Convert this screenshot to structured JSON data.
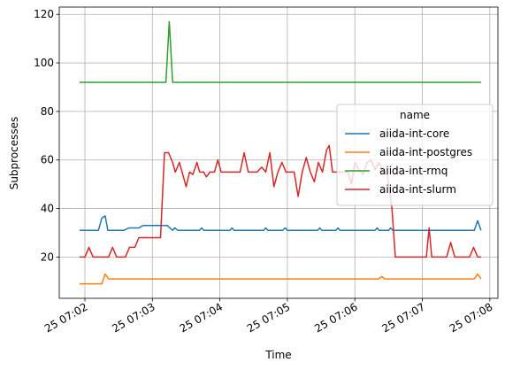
{
  "chart_data": {
    "type": "line",
    "xlabel": "Time",
    "ylabel": "Subprocesses",
    "xtick_labels": [
      "25 07:02",
      "25 07:03",
      "25 07:04",
      "25 07:05",
      "25 07:06",
      "25 07:07",
      "25 07:08"
    ],
    "xtick_minutes": [
      2,
      3,
      4,
      5,
      6,
      7,
      8
    ],
    "xlim_minutes": [
      1.62,
      8.12
    ],
    "ylim": [
      3,
      123
    ],
    "yticks": [
      20,
      40,
      60,
      80,
      100,
      120
    ],
    "grid": true,
    "legend": {
      "title": "name",
      "placement": "center-right"
    },
    "colors": {
      "aiida-int-core": "#1f77b4",
      "aiida-int-postgres": "#ff7f0e",
      "aiida-int-rmq": "#2ca02c",
      "aiida-int-slurm": "#d62728"
    },
    "series": [
      {
        "name": "aiida-int-core",
        "color": "#1f77b4",
        "points": [
          [
            1.92,
            31
          ],
          [
            2.2,
            31
          ],
          [
            2.25,
            36
          ],
          [
            2.3,
            37
          ],
          [
            2.34,
            31
          ],
          [
            2.58,
            31
          ],
          [
            2.65,
            32
          ],
          [
            2.8,
            32
          ],
          [
            2.86,
            33
          ],
          [
            3.22,
            33
          ],
          [
            3.3,
            31
          ],
          [
            3.33,
            32
          ],
          [
            3.38,
            31
          ],
          [
            3.7,
            31
          ],
          [
            3.73,
            32
          ],
          [
            3.76,
            31
          ],
          [
            4.15,
            31
          ],
          [
            4.18,
            32
          ],
          [
            4.21,
            31
          ],
          [
            4.65,
            31
          ],
          [
            4.68,
            32
          ],
          [
            4.71,
            31
          ],
          [
            4.93,
            31
          ],
          [
            4.97,
            32
          ],
          [
            5.0,
            31
          ],
          [
            5.45,
            31
          ],
          [
            5.48,
            32
          ],
          [
            5.51,
            31
          ],
          [
            5.72,
            31
          ],
          [
            5.75,
            32
          ],
          [
            5.78,
            31
          ],
          [
            6.3,
            31
          ],
          [
            6.33,
            32
          ],
          [
            6.36,
            31
          ],
          [
            6.5,
            31
          ],
          [
            6.53,
            32
          ],
          [
            6.56,
            31
          ],
          [
            7.77,
            31
          ],
          [
            7.82,
            35
          ],
          [
            7.87,
            31
          ]
        ]
      },
      {
        "name": "aiida-int-postgres",
        "color": "#ff7f0e",
        "points": [
          [
            1.92,
            9
          ],
          [
            2.25,
            9
          ],
          [
            2.3,
            13
          ],
          [
            2.35,
            11
          ],
          [
            6.35,
            11
          ],
          [
            6.4,
            12
          ],
          [
            6.44,
            11
          ],
          [
            7.77,
            11
          ],
          [
            7.82,
            13
          ],
          [
            7.87,
            11
          ]
        ]
      },
      {
        "name": "aiida-int-rmq",
        "color": "#2ca02c",
        "points": [
          [
            1.92,
            92
          ],
          [
            3.2,
            92
          ],
          [
            3.25,
            117
          ],
          [
            3.3,
            92
          ],
          [
            7.87,
            92
          ]
        ]
      },
      {
        "name": "aiida-int-slurm",
        "color": "#d62728",
        "points": [
          [
            1.92,
            20
          ],
          [
            2.0,
            20
          ],
          [
            2.06,
            24
          ],
          [
            2.12,
            20
          ],
          [
            2.35,
            20
          ],
          [
            2.41,
            24
          ],
          [
            2.47,
            20
          ],
          [
            2.6,
            20
          ],
          [
            2.66,
            24
          ],
          [
            2.74,
            24
          ],
          [
            2.8,
            28
          ],
          [
            3.12,
            28
          ],
          [
            3.18,
            63
          ],
          [
            3.24,
            63
          ],
          [
            3.3,
            59
          ],
          [
            3.34,
            55
          ],
          [
            3.4,
            59
          ],
          [
            3.44,
            55
          ],
          [
            3.5,
            49
          ],
          [
            3.55,
            55
          ],
          [
            3.6,
            54
          ],
          [
            3.66,
            59
          ],
          [
            3.7,
            55
          ],
          [
            3.76,
            55
          ],
          [
            3.8,
            53
          ],
          [
            3.85,
            55
          ],
          [
            3.92,
            55
          ],
          [
            3.97,
            60
          ],
          [
            4.02,
            55
          ],
          [
            4.08,
            55
          ],
          [
            4.3,
            55
          ],
          [
            4.36,
            63
          ],
          [
            4.42,
            55
          ],
          [
            4.55,
            55
          ],
          [
            4.62,
            57
          ],
          [
            4.68,
            55
          ],
          [
            4.74,
            63
          ],
          [
            4.8,
            49
          ],
          [
            4.86,
            55
          ],
          [
            4.92,
            59
          ],
          [
            4.98,
            55
          ],
          [
            5.1,
            55
          ],
          [
            5.16,
            45
          ],
          [
            5.22,
            55
          ],
          [
            5.28,
            61
          ],
          [
            5.34,
            55
          ],
          [
            5.4,
            51
          ],
          [
            5.46,
            59
          ],
          [
            5.52,
            55
          ],
          [
            5.58,
            64
          ],
          [
            5.62,
            66
          ],
          [
            5.67,
            55
          ],
          [
            5.9,
            55
          ],
          [
            5.95,
            50
          ],
          [
            6.0,
            59
          ],
          [
            6.06,
            56
          ],
          [
            6.12,
            54
          ],
          [
            6.18,
            59
          ],
          [
            6.24,
            60
          ],
          [
            6.3,
            56
          ],
          [
            6.36,
            59
          ],
          [
            6.42,
            55
          ],
          [
            6.48,
            54
          ],
          [
            6.55,
            40
          ],
          [
            6.6,
            20
          ],
          [
            7.06,
            20
          ],
          [
            7.1,
            32
          ],
          [
            7.14,
            20
          ],
          [
            7.36,
            20
          ],
          [
            7.42,
            26
          ],
          [
            7.48,
            20
          ],
          [
            7.7,
            20
          ],
          [
            7.76,
            24
          ],
          [
            7.82,
            20
          ],
          [
            7.87,
            20
          ]
        ]
      }
    ]
  }
}
